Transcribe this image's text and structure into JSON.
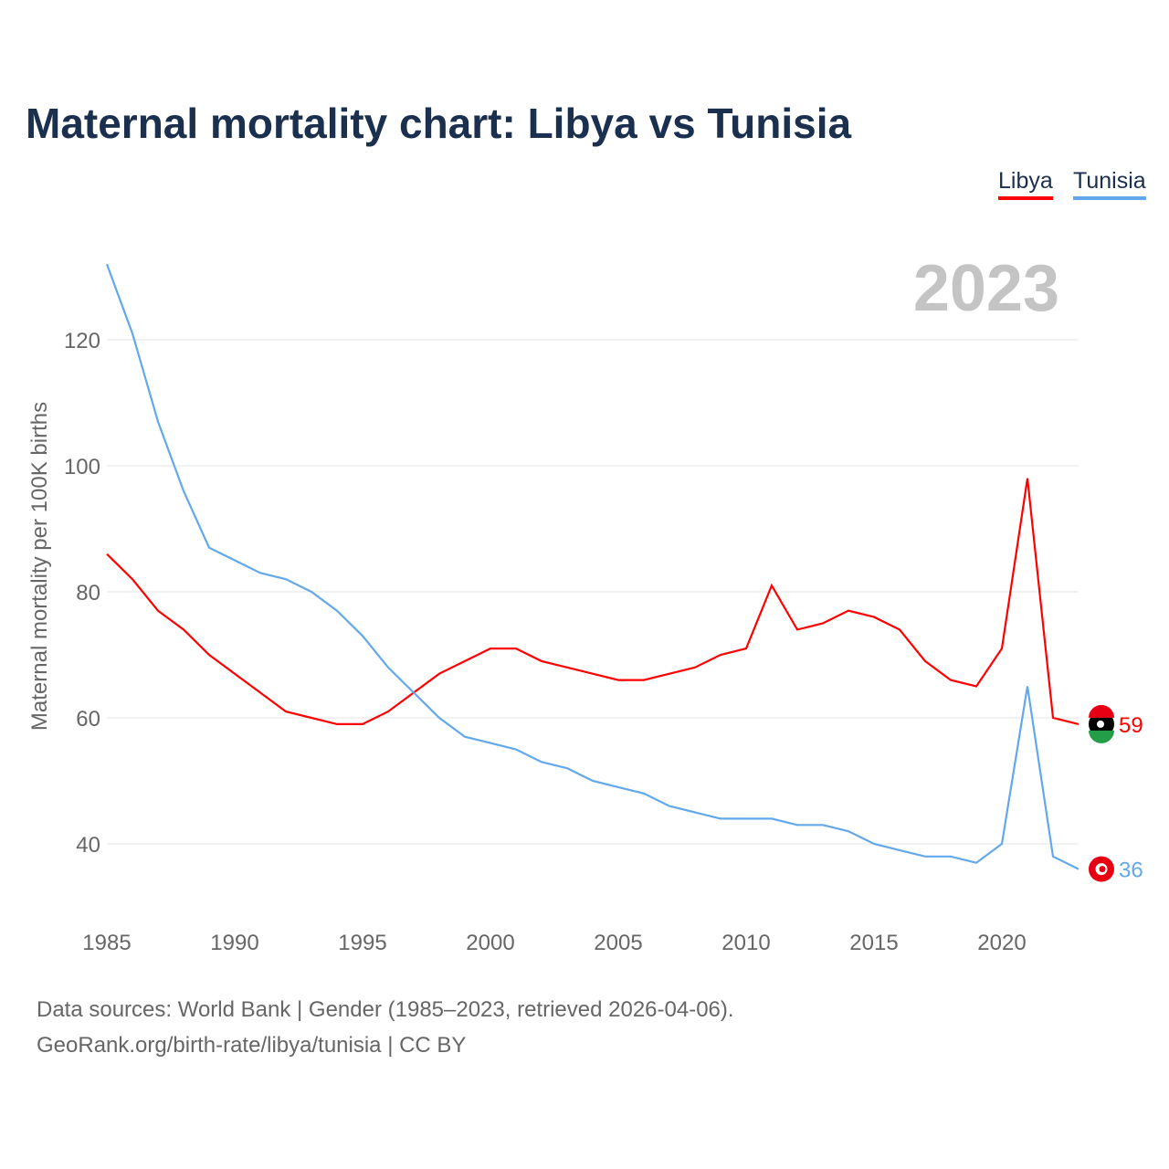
{
  "chart_data": {
    "type": "line",
    "title": "Maternal mortality chart: Libya vs Tunisia",
    "ylabel": "Maternal mortality per 100K births",
    "xlabel": "",
    "year_label": "2023",
    "x": [
      1985,
      1986,
      1987,
      1988,
      1989,
      1990,
      1991,
      1992,
      1993,
      1994,
      1995,
      1996,
      1997,
      1998,
      1999,
      2000,
      2001,
      2002,
      2003,
      2004,
      2005,
      2006,
      2007,
      2008,
      2009,
      2010,
      2011,
      2012,
      2013,
      2014,
      2015,
      2016,
      2017,
      2018,
      2019,
      2020,
      2021,
      2022,
      2023
    ],
    "xticks": [
      "1985",
      "1990",
      "1995",
      "2000",
      "2005",
      "2010",
      "2015",
      "2020"
    ],
    "yticks": [
      "40",
      "60",
      "80",
      "100",
      "120"
    ],
    "xlim": [
      1985,
      2023
    ],
    "ylim": [
      30,
      134
    ],
    "series": [
      {
        "name": "Libya",
        "color": "#ff0000",
        "end_label": "59",
        "values": [
          86,
          82,
          77,
          74,
          70,
          67,
          64,
          61,
          60,
          59,
          59,
          61,
          64,
          67,
          69,
          71,
          71,
          69,
          68,
          67,
          66,
          66,
          67,
          68,
          70,
          71,
          81,
          74,
          75,
          77,
          76,
          74,
          69,
          66,
          65,
          71,
          98,
          60,
          59
        ]
      },
      {
        "name": "Tunisia",
        "color": "#62a8ea",
        "end_label": "36",
        "values": [
          132,
          121,
          107,
          96,
          87,
          85,
          83,
          82,
          80,
          77,
          73,
          68,
          64,
          60,
          57,
          56,
          55,
          53,
          52,
          50,
          49,
          48,
          46,
          45,
          44,
          44,
          44,
          43,
          43,
          42,
          40,
          39,
          38,
          38,
          37,
          40,
          65,
          38,
          36
        ]
      }
    ]
  },
  "source": {
    "line1": "Data sources: World Bank | Gender (1985–2023, retrieved 2026-04-06).",
    "line2": "GeoRank.org/birth-rate/libya/tunisia | CC BY"
  }
}
